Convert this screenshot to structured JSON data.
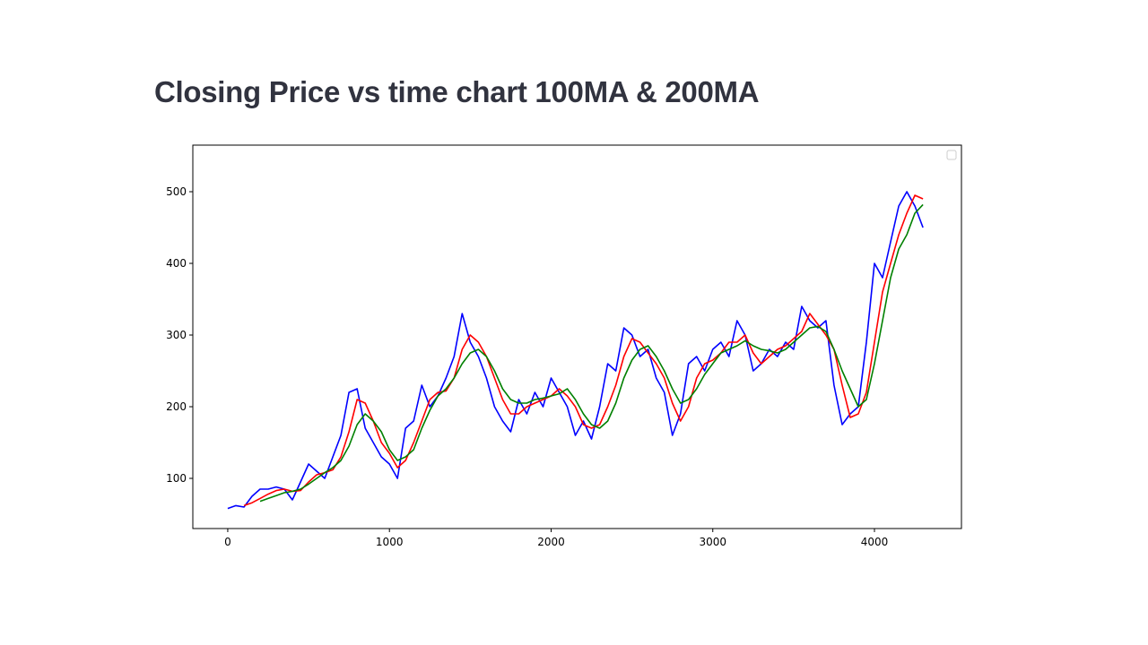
{
  "chart_data": {
    "type": "line",
    "title": "Closing Price vs time chart 100MA & 200MA",
    "x": [
      0,
      50,
      100,
      150,
      200,
      250,
      300,
      350,
      400,
      450,
      500,
      550,
      600,
      650,
      700,
      750,
      800,
      850,
      900,
      950,
      1000,
      1050,
      1100,
      1150,
      1200,
      1250,
      1300,
      1350,
      1400,
      1450,
      1500,
      1550,
      1600,
      1650,
      1700,
      1750,
      1800,
      1850,
      1900,
      1950,
      2000,
      2050,
      2100,
      2150,
      2200,
      2250,
      2300,
      2350,
      2400,
      2450,
      2500,
      2550,
      2600,
      2650,
      2700,
      2750,
      2800,
      2850,
      2900,
      2950,
      3000,
      3050,
      3100,
      3150,
      3200,
      3250,
      3300,
      3350,
      3400,
      3450,
      3500,
      3550,
      3600,
      3650,
      3700,
      3750,
      3800,
      3850,
      3900,
      3950,
      4000,
      4050,
      4100,
      4150,
      4200,
      4250,
      4300
    ],
    "series": [
      {
        "color": "#0000ff",
        "values": [
          58,
          62,
          60,
          75,
          85,
          85,
          88,
          85,
          70,
          95,
          120,
          110,
          100,
          130,
          160,
          220,
          225,
          170,
          150,
          130,
          120,
          100,
          170,
          180,
          230,
          200,
          215,
          240,
          270,
          330,
          290,
          270,
          240,
          200,
          180,
          165,
          210,
          190,
          220,
          200,
          240,
          220,
          200,
          160,
          180,
          155,
          200,
          260,
          250,
          310,
          300,
          270,
          280,
          240,
          220,
          160,
          190,
          260,
          270,
          250,
          280,
          290,
          270,
          320,
          300,
          250,
          260,
          280,
          270,
          290,
          280,
          340,
          320,
          310,
          320,
          230,
          175,
          190,
          200,
          290,
          400,
          380,
          430,
          480,
          500,
          480,
          450
        ]
      },
      {
        "color": "#ff0000",
        "values": [
          null,
          null,
          62,
          66,
          72,
          78,
          83,
          85,
          82,
          83,
          95,
          105,
          108,
          112,
          130,
          165,
          210,
          205,
          180,
          150,
          135,
          115,
          125,
          150,
          180,
          210,
          220,
          222,
          240,
          280,
          300,
          290,
          270,
          240,
          210,
          190,
          190,
          200,
          205,
          210,
          215,
          225,
          215,
          200,
          175,
          170,
          175,
          200,
          230,
          270,
          295,
          290,
          275,
          260,
          240,
          205,
          180,
          200,
          240,
          260,
          265,
          275,
          290,
          290,
          300,
          275,
          260,
          270,
          280,
          285,
          295,
          305,
          330,
          315,
          300,
          280,
          230,
          185,
          190,
          220,
          290,
          360,
          400,
          440,
          470,
          495,
          490
        ]
      },
      {
        "color": "#008000",
        "values": [
          null,
          null,
          null,
          null,
          68,
          72,
          76,
          80,
          82,
          85,
          92,
          100,
          108,
          115,
          125,
          145,
          175,
          190,
          180,
          165,
          140,
          125,
          130,
          140,
          170,
          195,
          215,
          225,
          240,
          260,
          275,
          280,
          270,
          250,
          225,
          210,
          205,
          205,
          210,
          212,
          215,
          218,
          225,
          210,
          190,
          175,
          170,
          180,
          205,
          240,
          265,
          280,
          285,
          270,
          250,
          225,
          205,
          210,
          225,
          245,
          260,
          275,
          280,
          285,
          292,
          285,
          280,
          278,
          275,
          280,
          290,
          300,
          310,
          312,
          305,
          280,
          250,
          225,
          200,
          210,
          260,
          320,
          380,
          420,
          440,
          470,
          482
        ]
      }
    ],
    "xlim": [
      -216,
      4538
    ],
    "ylim": [
      30,
      565
    ],
    "xticks": [
      0,
      1000,
      2000,
      3000,
      4000
    ],
    "yticks": [
      100,
      200,
      300,
      400,
      500
    ],
    "grid": false
  }
}
